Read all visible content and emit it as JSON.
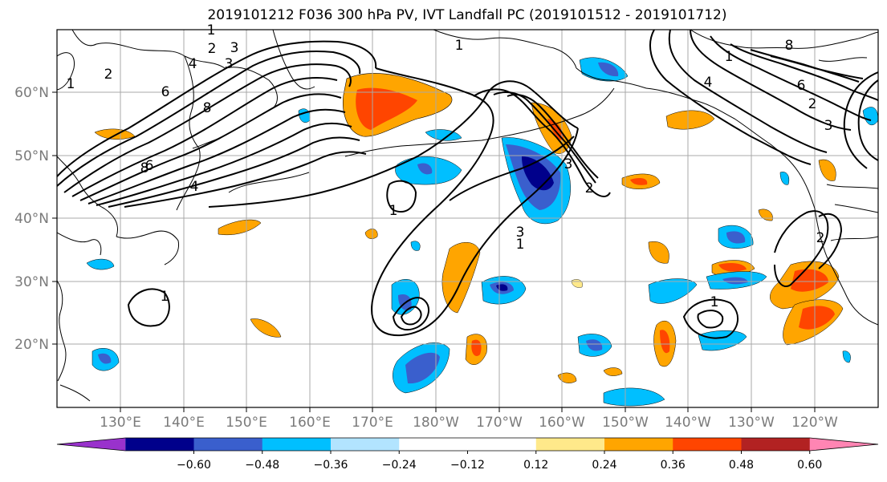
{
  "title": "2019101212 F036 300 hPa PV, IVT Landfall PC (2019101512 - 2019101712)",
  "lat_labels": [
    "60°N",
    "50°N",
    "40°N",
    "30°N",
    "20°N"
  ],
  "lon_labels": [
    "130°E",
    "140°E",
    "150°E",
    "160°E",
    "170°E",
    "180°W",
    "170°W",
    "160°W",
    "150°W",
    "140°W",
    "130°W",
    "120°W"
  ],
  "colorbar": {
    "colors": [
      "#9932cc",
      "#00008b",
      "#3a5fcd",
      "#00bfff",
      "#b2e4ff",
      "#ffffff",
      "#ffffff",
      "#ffe98a",
      "#ffa500",
      "#ff4500",
      "#b22222",
      "#ff85b3"
    ],
    "tick_labels": [
      "−0.60",
      "−0.48",
      "−0.36",
      "−0.24",
      "−0.12",
      "0.12",
      "0.24",
      "0.36",
      "0.48",
      "0.60"
    ]
  },
  "contour_labels": [
    "1",
    "2",
    "3",
    "4",
    "6",
    "8",
    "1",
    "2",
    "3",
    "4",
    "6",
    "8",
    "1",
    "2",
    "3",
    "1",
    "1",
    "1",
    "2",
    "3",
    "1",
    "3",
    "1",
    "2",
    "4",
    "6",
    "8"
  ],
  "colors": {
    "grid": "#a9a9a9",
    "contour": "#000000",
    "axis_text": "#7a7a7a"
  }
}
